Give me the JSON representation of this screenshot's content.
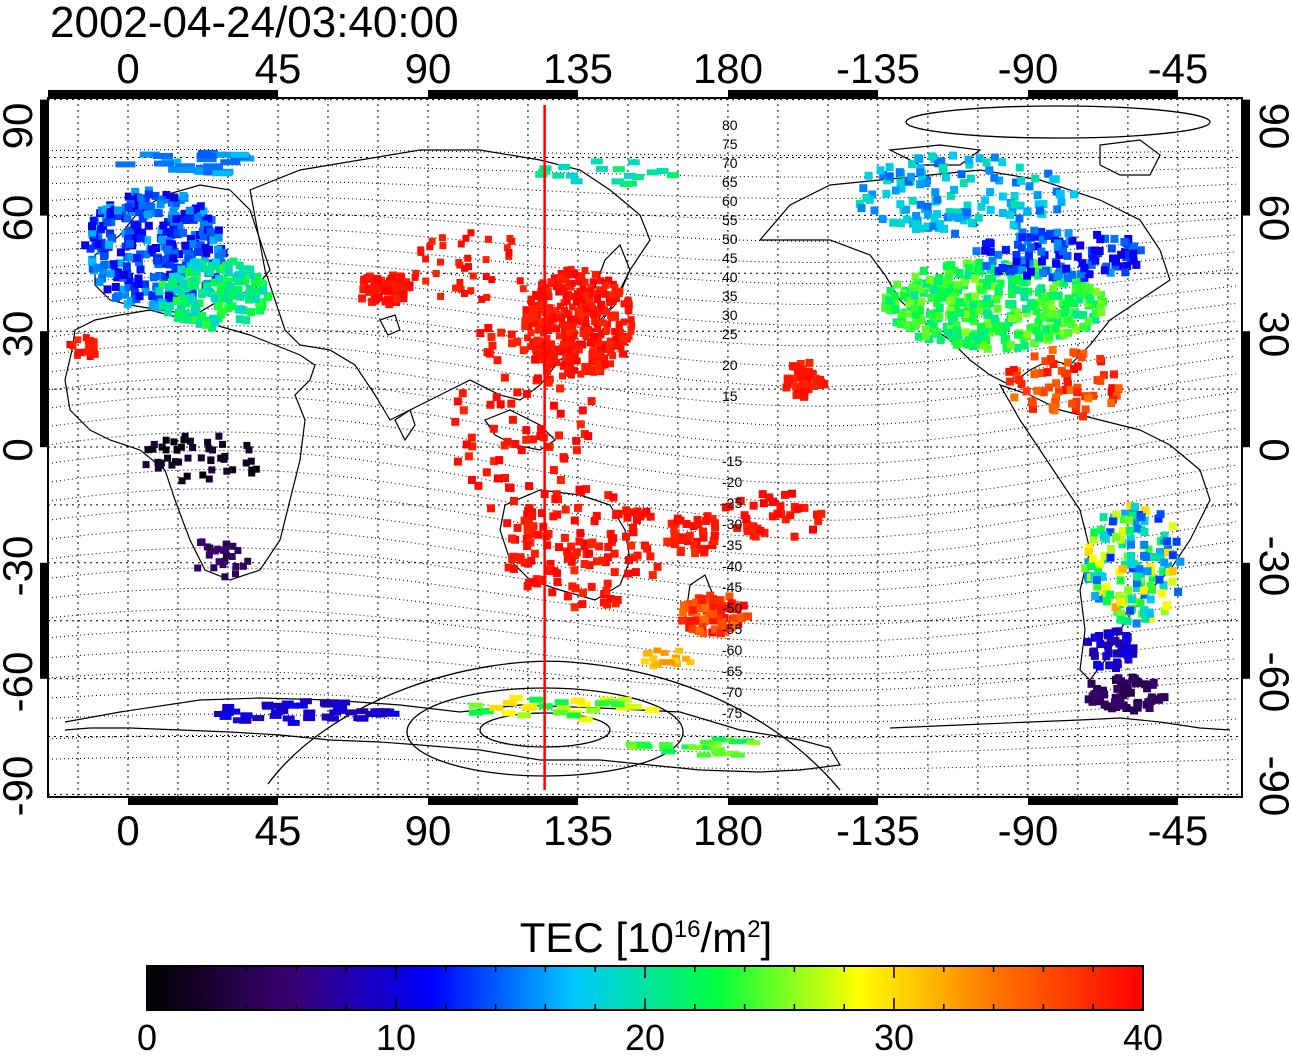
{
  "timestamp": "2002-04-24/03:40:00",
  "map": {
    "top_lon_ticks": [
      "0",
      "45",
      "90",
      "135",
      "180",
      "-135",
      "-90",
      "-45"
    ],
    "bottom_lon_ticks": [
      "0",
      "45",
      "90",
      "135",
      "180",
      "-135",
      "-90",
      "-45"
    ],
    "left_lat_ticks": [
      "90",
      "60",
      "30",
      "0",
      "-30",
      "-60",
      "-90"
    ],
    "right_lat_ticks": [
      "90",
      "60",
      "30",
      "0",
      "-30",
      "-60",
      "-90"
    ],
    "north_contour_labels": [
      "80",
      "75",
      "70",
      "65",
      "60",
      "55",
      "50",
      "45",
      "40",
      "35",
      "30",
      "25",
      "20",
      "15"
    ],
    "south_contour_labels": [
      "-15",
      "-20",
      "-25",
      "-30",
      "-35",
      "-40",
      "-45",
      "-50",
      "-55",
      "-60",
      "-65",
      "-70",
      "-75"
    ],
    "meridian_line_color": "#ff0000",
    "meridian_longitude": 125
  },
  "colorbar": {
    "title": "TEC  [10",
    "title_sup1": "16",
    "title_mid": "/m",
    "title_sup2": "2",
    "title_end": "]",
    "ticks": [
      "0",
      "10",
      "20",
      "30",
      "40"
    ],
    "range": [
      0,
      40
    ],
    "colors": [
      "#000000",
      "#3a0070",
      "#0000ff",
      "#00c8ff",
      "#00ff40",
      "#ffff00",
      "#ff7000",
      "#ff0000"
    ]
  }
}
